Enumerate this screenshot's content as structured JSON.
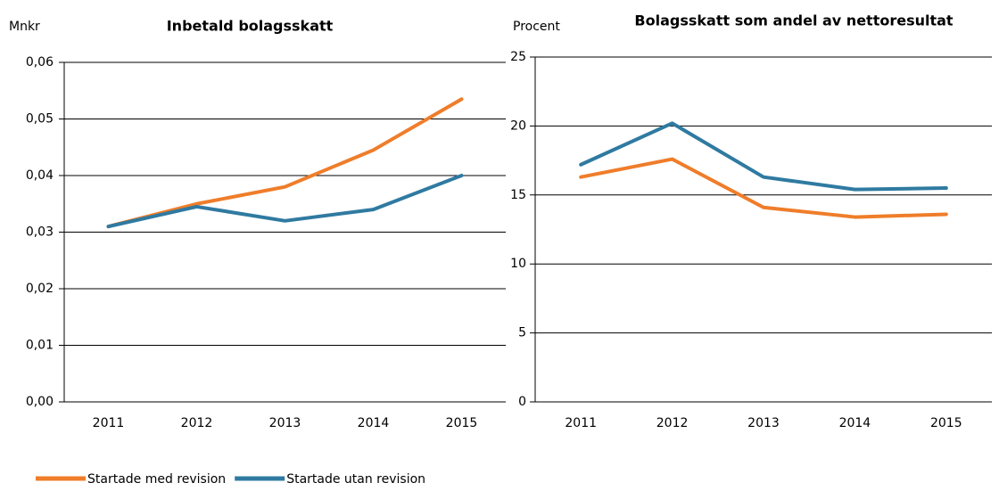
{
  "chart_data": [
    {
      "type": "line",
      "title": "Inbetald bolagsskatt",
      "y_label": "Mnkr",
      "categories": [
        "2011",
        "2012",
        "2013",
        "2014",
        "2015"
      ],
      "series": [
        {
          "name": "Startade med revision",
          "color": "#ef7d2a",
          "values": [
            0.031,
            0.035,
            0.038,
            0.0445,
            0.0535
          ]
        },
        {
          "name": "Startade utan revision",
          "color": "#2f7aa1",
          "values": [
            0.031,
            0.0345,
            0.032,
            0.034,
            0.04
          ]
        }
      ],
      "ylim": [
        0,
        0.06
      ],
      "yticks": [
        {
          "value": 0,
          "label": "0,00"
        },
        {
          "value": 0.01,
          "label": "0,01"
        },
        {
          "value": 0.02,
          "label": "0,02"
        },
        {
          "value": 0.03,
          "label": "0,03"
        },
        {
          "value": 0.04,
          "label": "0,04"
        },
        {
          "value": 0.05,
          "label": "0,05"
        },
        {
          "value": 0.06,
          "label": "0,06"
        }
      ],
      "grid": true
    },
    {
      "type": "line",
      "title": "Bolagsskatt som andel av nettoresultat",
      "y_label": "Procent",
      "categories": [
        "2011",
        "2012",
        "2013",
        "2014",
        "2015"
      ],
      "series": [
        {
          "color": "#ef7d2a",
          "values": [
            16.3,
            17.6,
            14.1,
            13.4,
            13.6
          ]
        },
        {
          "color": "#2f7aa1",
          "values": [
            17.2,
            20.2,
            16.3,
            15.4,
            15.5
          ]
        }
      ],
      "ylim": [
        0,
        25
      ],
      "yticks": [
        0,
        5,
        10,
        15,
        20,
        25
      ],
      "grid": true
    }
  ]
}
